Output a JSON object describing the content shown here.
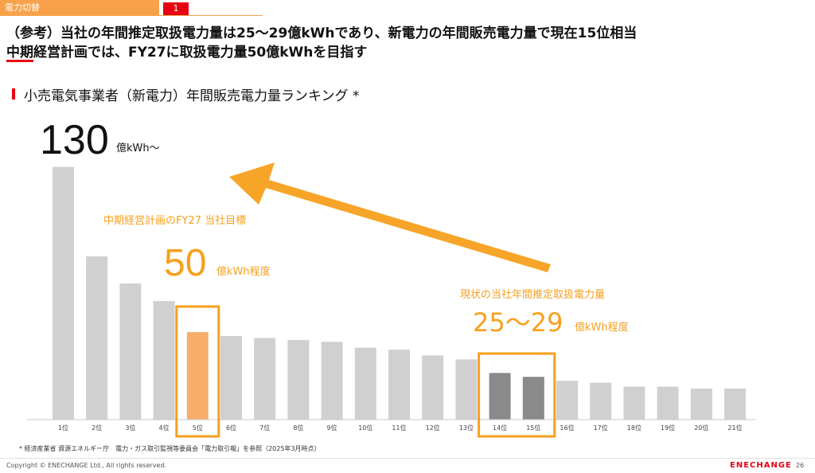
{
  "header": {
    "tab_label": "電力切替",
    "section_number": "1",
    "title_line1": "（参考）当社の年間推定取扱電力量は25～29億kWhであり、新電力の年間販売電力量で現在15位相当",
    "title_line2": "中期経営計画では、FY27に取扱電力量50億kWhを目指す"
  },
  "subtitle": "小売電気事業者（新電力）年間販売電力量ランキング *",
  "chart_data": {
    "type": "bar",
    "categories": [
      "1位",
      "2位",
      "3位",
      "4位",
      "5位",
      "6位",
      "7位",
      "8位",
      "9位",
      "10位",
      "11位",
      "12位",
      "13位",
      "14位",
      "15位",
      "16位",
      "17位",
      "18位",
      "19位",
      "20位",
      "21位"
    ],
    "values": [
      130,
      84,
      70,
      61,
      45,
      43,
      42,
      41,
      40,
      37,
      36,
      33,
      31,
      24,
      22,
      20,
      19,
      17,
      17,
      16,
      16
    ],
    "unit": "億kWh",
    "ylim": [
      0,
      138
    ],
    "grid": false,
    "bar_colors": {
      "default": "#d0d0d0",
      "target": "#f8ad6b",
      "current": "#8a8a8a"
    },
    "highlight_target_index": 4,
    "highlight_current_indices": [
      13,
      14
    ],
    "accent_color": "#f7a01e",
    "top_value_number": "130",
    "top_value_unit": "億kWh～",
    "annotations": {
      "target_caption": "中期経営計画のFY27 当社目標",
      "target_value": "50",
      "target_unit": "億kWh程度",
      "current_caption": "現状の当社年間推定取扱電力量",
      "current_value": "25～29",
      "current_unit": "億kWh程度"
    }
  },
  "footnote": "* 経済産業省 資源エネルギー庁　電力・ガス取引監視等委員会「電力取引報」を参照（2025年3月時点）",
  "footer": {
    "copyright": "Copyright ©  ENECHANGE Ltd.,  All rights reserved.",
    "logo": "ENECHANGE",
    "page_number": "26"
  }
}
